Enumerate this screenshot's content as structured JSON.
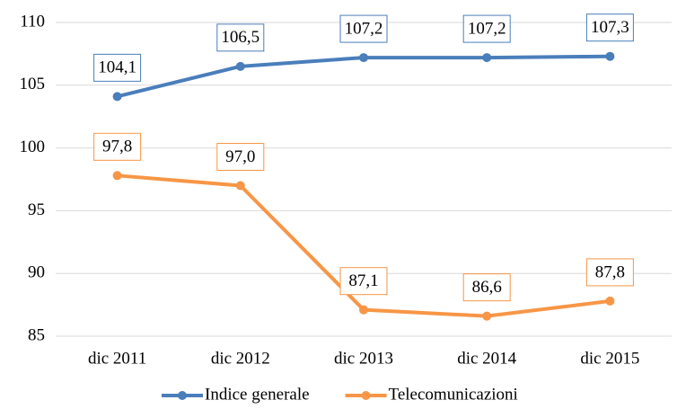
{
  "chart_data": {
    "type": "line",
    "categories": [
      "dic 2011",
      "dic 2012",
      "dic 2013",
      "dic 2014",
      "dic 2015"
    ],
    "series": [
      {
        "name": "Indice generale",
        "color": "#4a7ebb",
        "values": [
          104.1,
          106.5,
          107.2,
          107.2,
          107.3
        ],
        "value_labels": [
          "104,1",
          "106,5",
          "107,2",
          "107,2",
          "107,3"
        ]
      },
      {
        "name": "Telecomunicazioni",
        "color": "#f79646",
        "values": [
          97.8,
          97.0,
          87.1,
          86.6,
          87.8
        ],
        "value_labels": [
          "97,8",
          "97,0",
          "87,1",
          "86,6",
          "87,8"
        ]
      }
    ],
    "ylim": [
      85,
      110
    ],
    "yticks": [
      85,
      90,
      95,
      100,
      105,
      110
    ],
    "grid": true,
    "legend": "bottom"
  }
}
